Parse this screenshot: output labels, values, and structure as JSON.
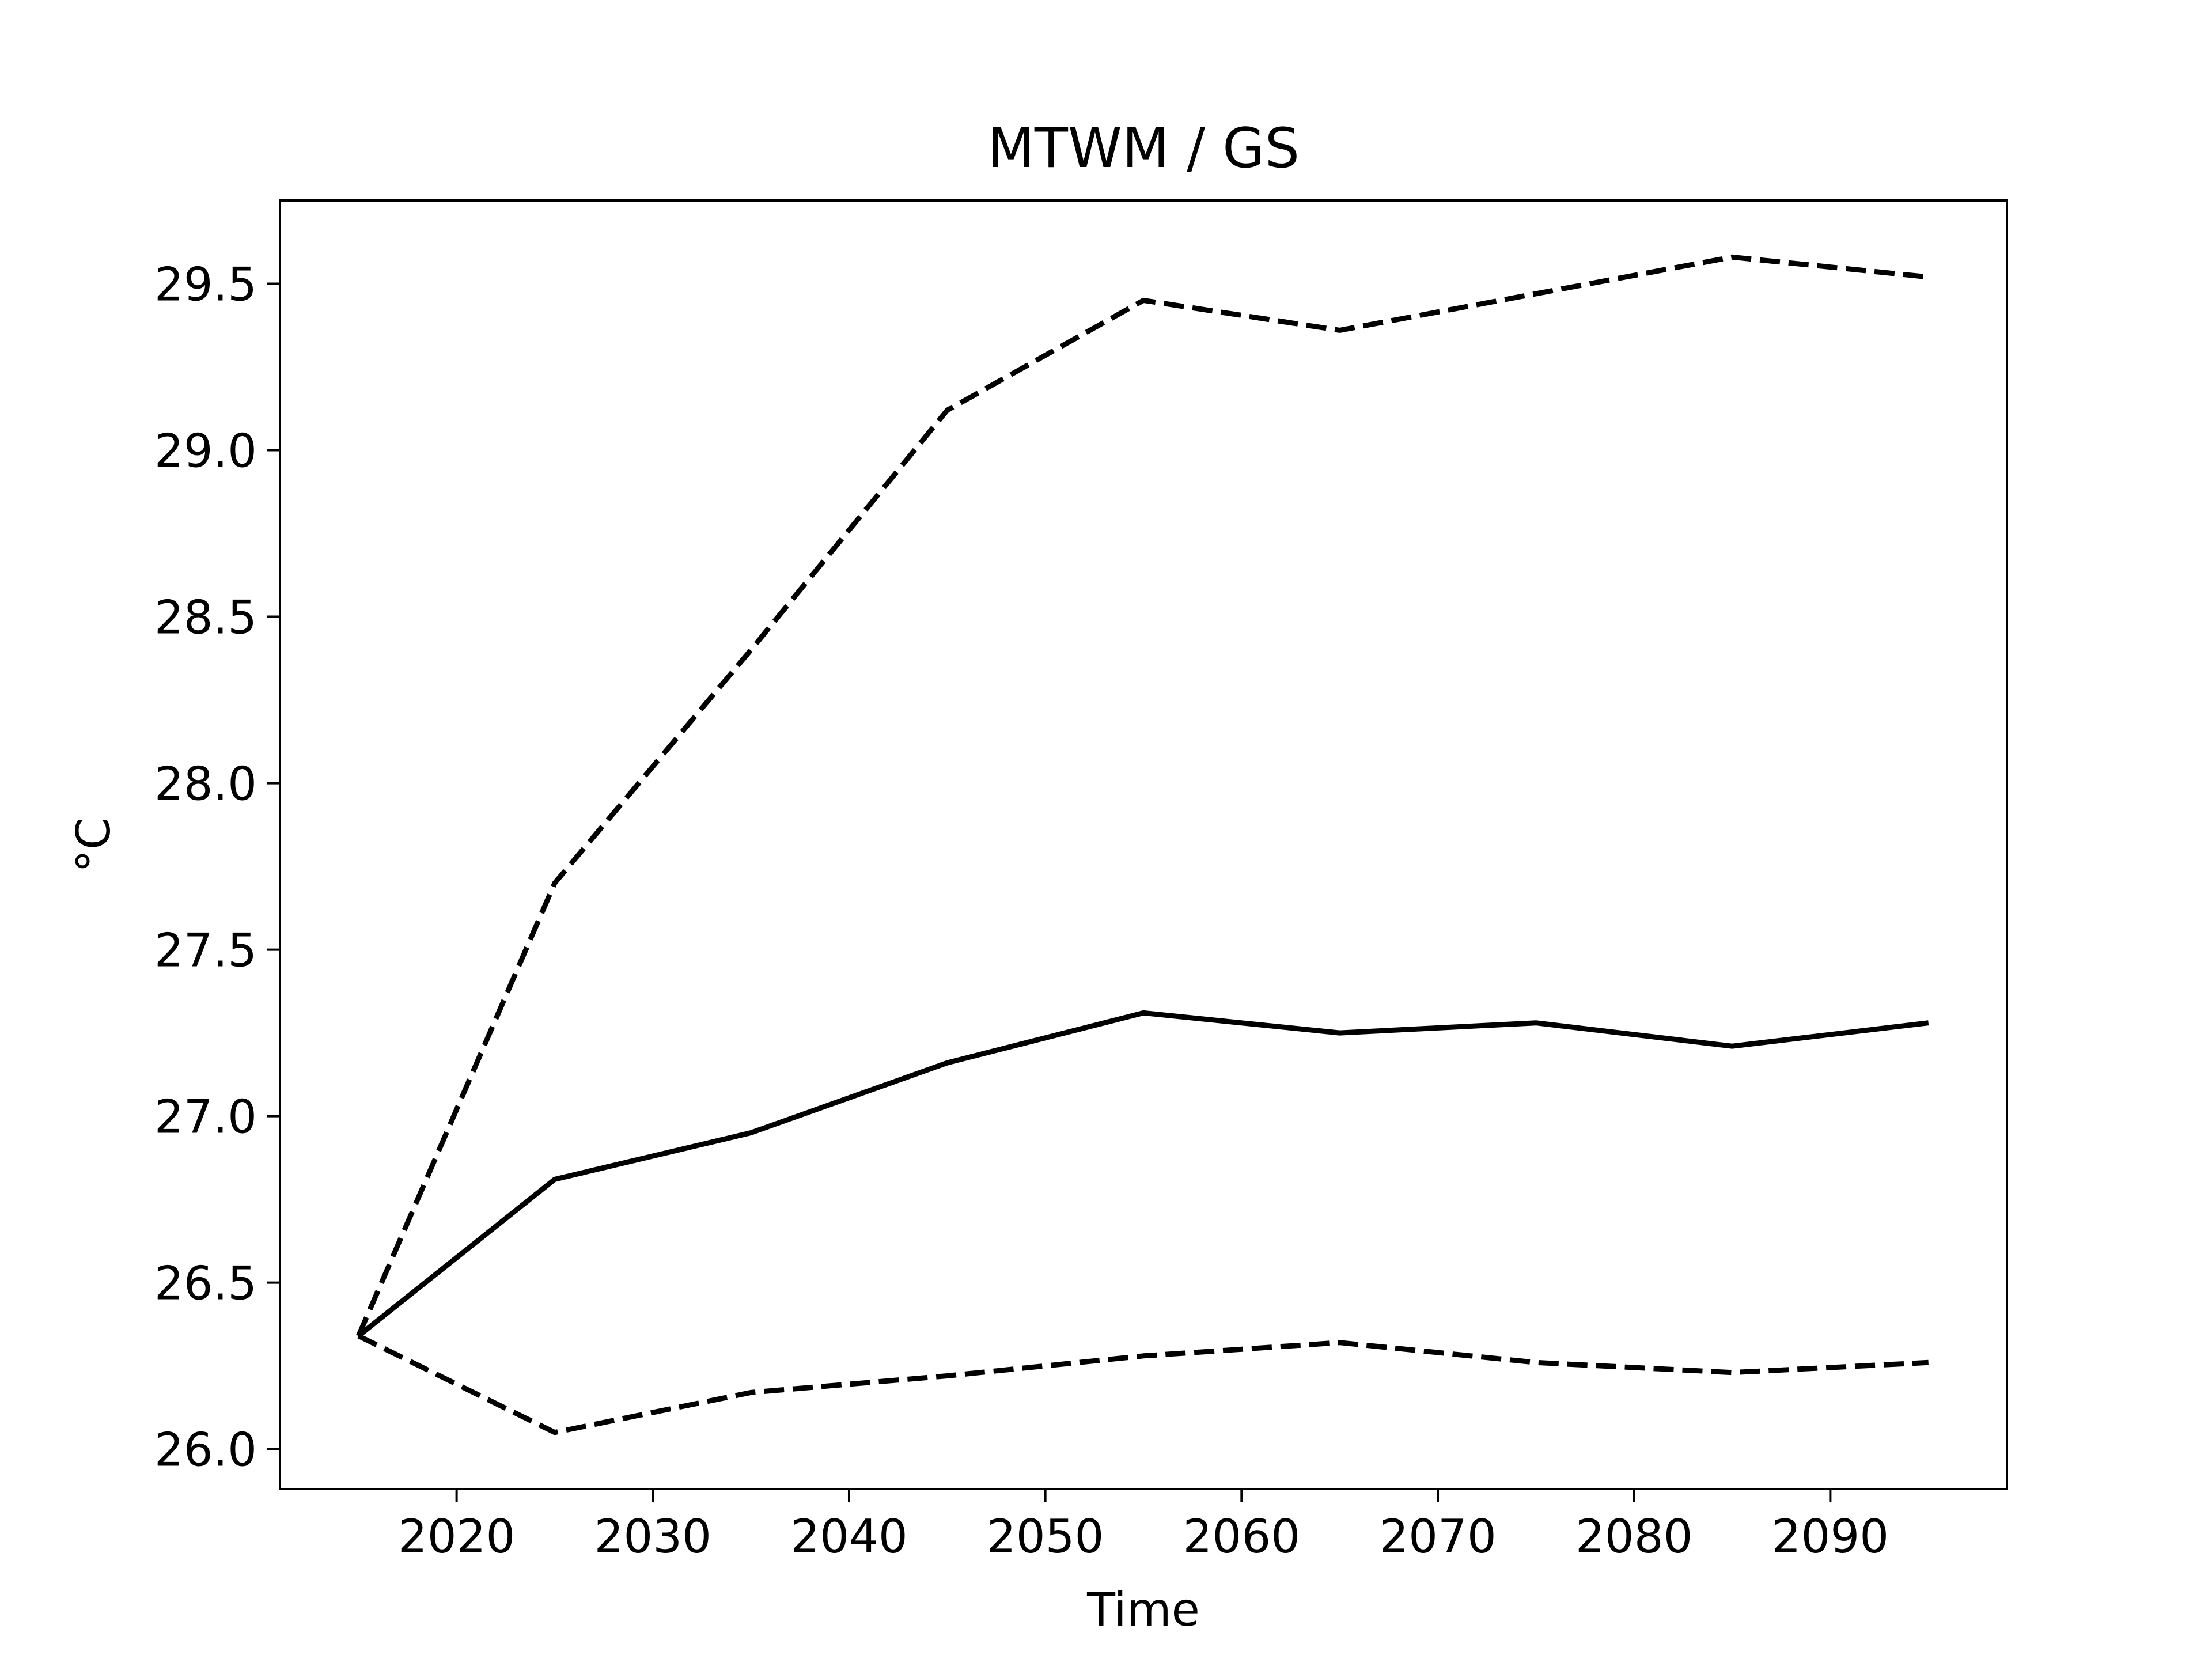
{
  "chart_data": {
    "type": "line",
    "title": "MTWM / GS",
    "xlabel": "Time",
    "ylabel": "°C",
    "xlim": [
      2011.0,
      2099.0
    ],
    "ylim": [
      25.88,
      29.75
    ],
    "xticks": [
      2020,
      2030,
      2040,
      2050,
      2060,
      2070,
      2080,
      2090
    ],
    "xtick_labels": [
      "2020",
      "2030",
      "2040",
      "2050",
      "2060",
      "2070",
      "2080",
      "2090"
    ],
    "yticks": [
      26.0,
      26.5,
      27.0,
      27.5,
      28.0,
      28.5,
      29.0,
      29.5
    ],
    "ytick_labels": [
      "26.0",
      "26.5",
      "27.0",
      "27.5",
      "28.0",
      "28.5",
      "29.0",
      "29.5"
    ],
    "grid": false,
    "legend": "none",
    "x": [
      2015,
      2025,
      2035,
      2045,
      2055,
      2065,
      2075,
      2085,
      2095
    ],
    "series": [
      {
        "style": "solid",
        "color": "#000000",
        "values": [
          26.34,
          26.81,
          26.95,
          27.16,
          27.31,
          27.25,
          27.28,
          27.21,
          27.28
        ]
      },
      {
        "style": "dashed",
        "color": "#000000",
        "values": [
          26.34,
          27.7,
          28.4,
          29.12,
          29.45,
          29.36,
          29.47,
          29.58,
          29.52
        ]
      },
      {
        "style": "dashed",
        "color": "#000000",
        "values": [
          26.34,
          26.05,
          26.17,
          26.22,
          26.28,
          26.32,
          26.26,
          26.23,
          26.26
        ]
      }
    ]
  }
}
